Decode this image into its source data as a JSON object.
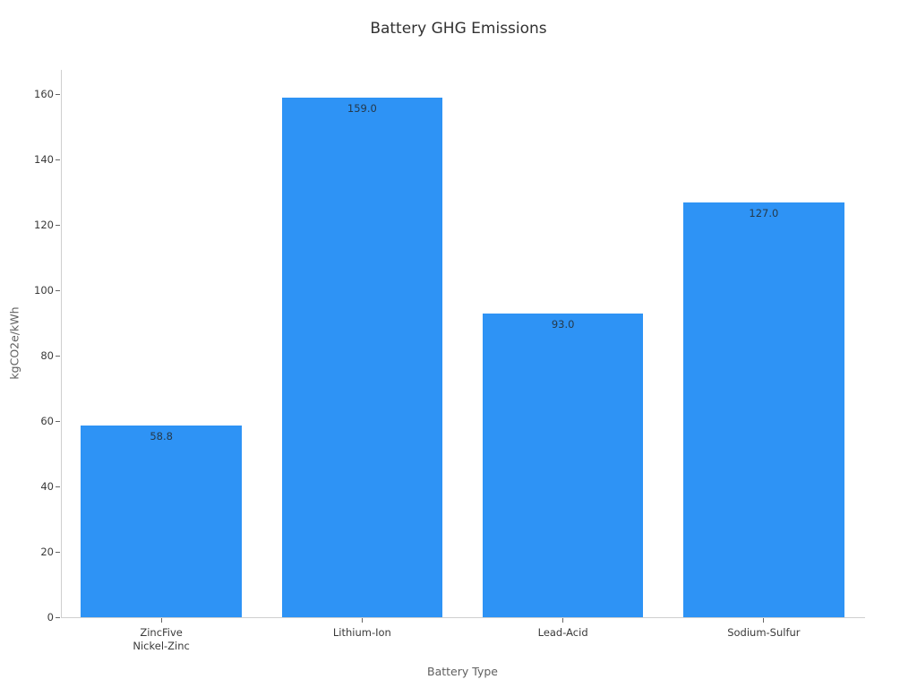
{
  "chart_data": {
    "type": "bar",
    "title": "Battery GHG Emissions",
    "xlabel": "Battery Type",
    "ylabel": "kgCO2e/kWh",
    "categories": [
      "ZincFive\nNickel-Zinc",
      "Lithium-Ion",
      "Lead-Acid",
      "Sodium-Sulfur"
    ],
    "values": [
      58.8,
      159.0,
      93.0,
      127.0
    ],
    "value_labels": [
      "58.8",
      "159.0",
      "93.0",
      "127.0"
    ],
    "value_label_position": "inside-top",
    "yticks": [
      0,
      20,
      40,
      60,
      80,
      100,
      120,
      140,
      160
    ],
    "ylim": [
      0,
      167.5
    ],
    "bar_color": "#2e93f5",
    "value_label_color": "#25394a",
    "background_color": "#ffffff",
    "spine_color": "#cfcfcf",
    "grid": false,
    "legend": null,
    "bar_width_fraction": 0.8
  }
}
